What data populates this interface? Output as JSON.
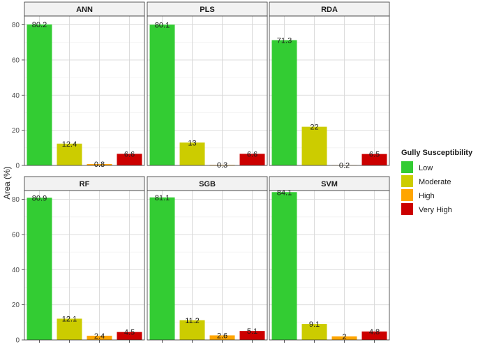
{
  "chart_data": {
    "type": "bar",
    "ylabel": "Area (%)",
    "xlabel": "",
    "ylim": [
      0,
      85
    ],
    "yticks": [
      0,
      20,
      40,
      60,
      80
    ],
    "grid": true,
    "legend": {
      "title": "Gully Susceptibility",
      "placement": "right",
      "entries": [
        {
          "label": "Low",
          "color": "#33cc33"
        },
        {
          "label": "Moderate",
          "color": "#cccc00"
        },
        {
          "label": "High",
          "color": "#ffa500"
        },
        {
          "label": "Very High",
          "color": "#cc0000"
        }
      ]
    },
    "categories": [
      "Low",
      "Moderate",
      "High",
      "Very High"
    ],
    "panels": [
      {
        "name": "ANN",
        "values": [
          80.2,
          12.4,
          0.8,
          6.6
        ],
        "labels": [
          "80.2",
          "12.4",
          "0.8",
          "6.6"
        ]
      },
      {
        "name": "PLS",
        "values": [
          80.1,
          13,
          0.3,
          6.6
        ],
        "labels": [
          "80.1",
          "13",
          "0.3",
          "6.6"
        ]
      },
      {
        "name": "RDA",
        "values": [
          71.3,
          22,
          0.2,
          6.5
        ],
        "labels": [
          "71.3",
          "22",
          "0.2",
          "6.5"
        ]
      },
      {
        "name": "RF",
        "values": [
          80.9,
          12.1,
          2.4,
          4.5
        ],
        "labels": [
          "80.9",
          "12.1",
          "2.4",
          "4.5"
        ]
      },
      {
        "name": "SGB",
        "values": [
          81.1,
          11.2,
          2.6,
          5.1
        ],
        "labels": [
          "81.1",
          "11.2",
          "2.6",
          "5.1"
        ]
      },
      {
        "name": "SVM",
        "values": [
          84.1,
          9.1,
          2,
          4.8
        ],
        "labels": [
          "84.1",
          "9.1",
          "2",
          "4.8"
        ]
      }
    ]
  }
}
